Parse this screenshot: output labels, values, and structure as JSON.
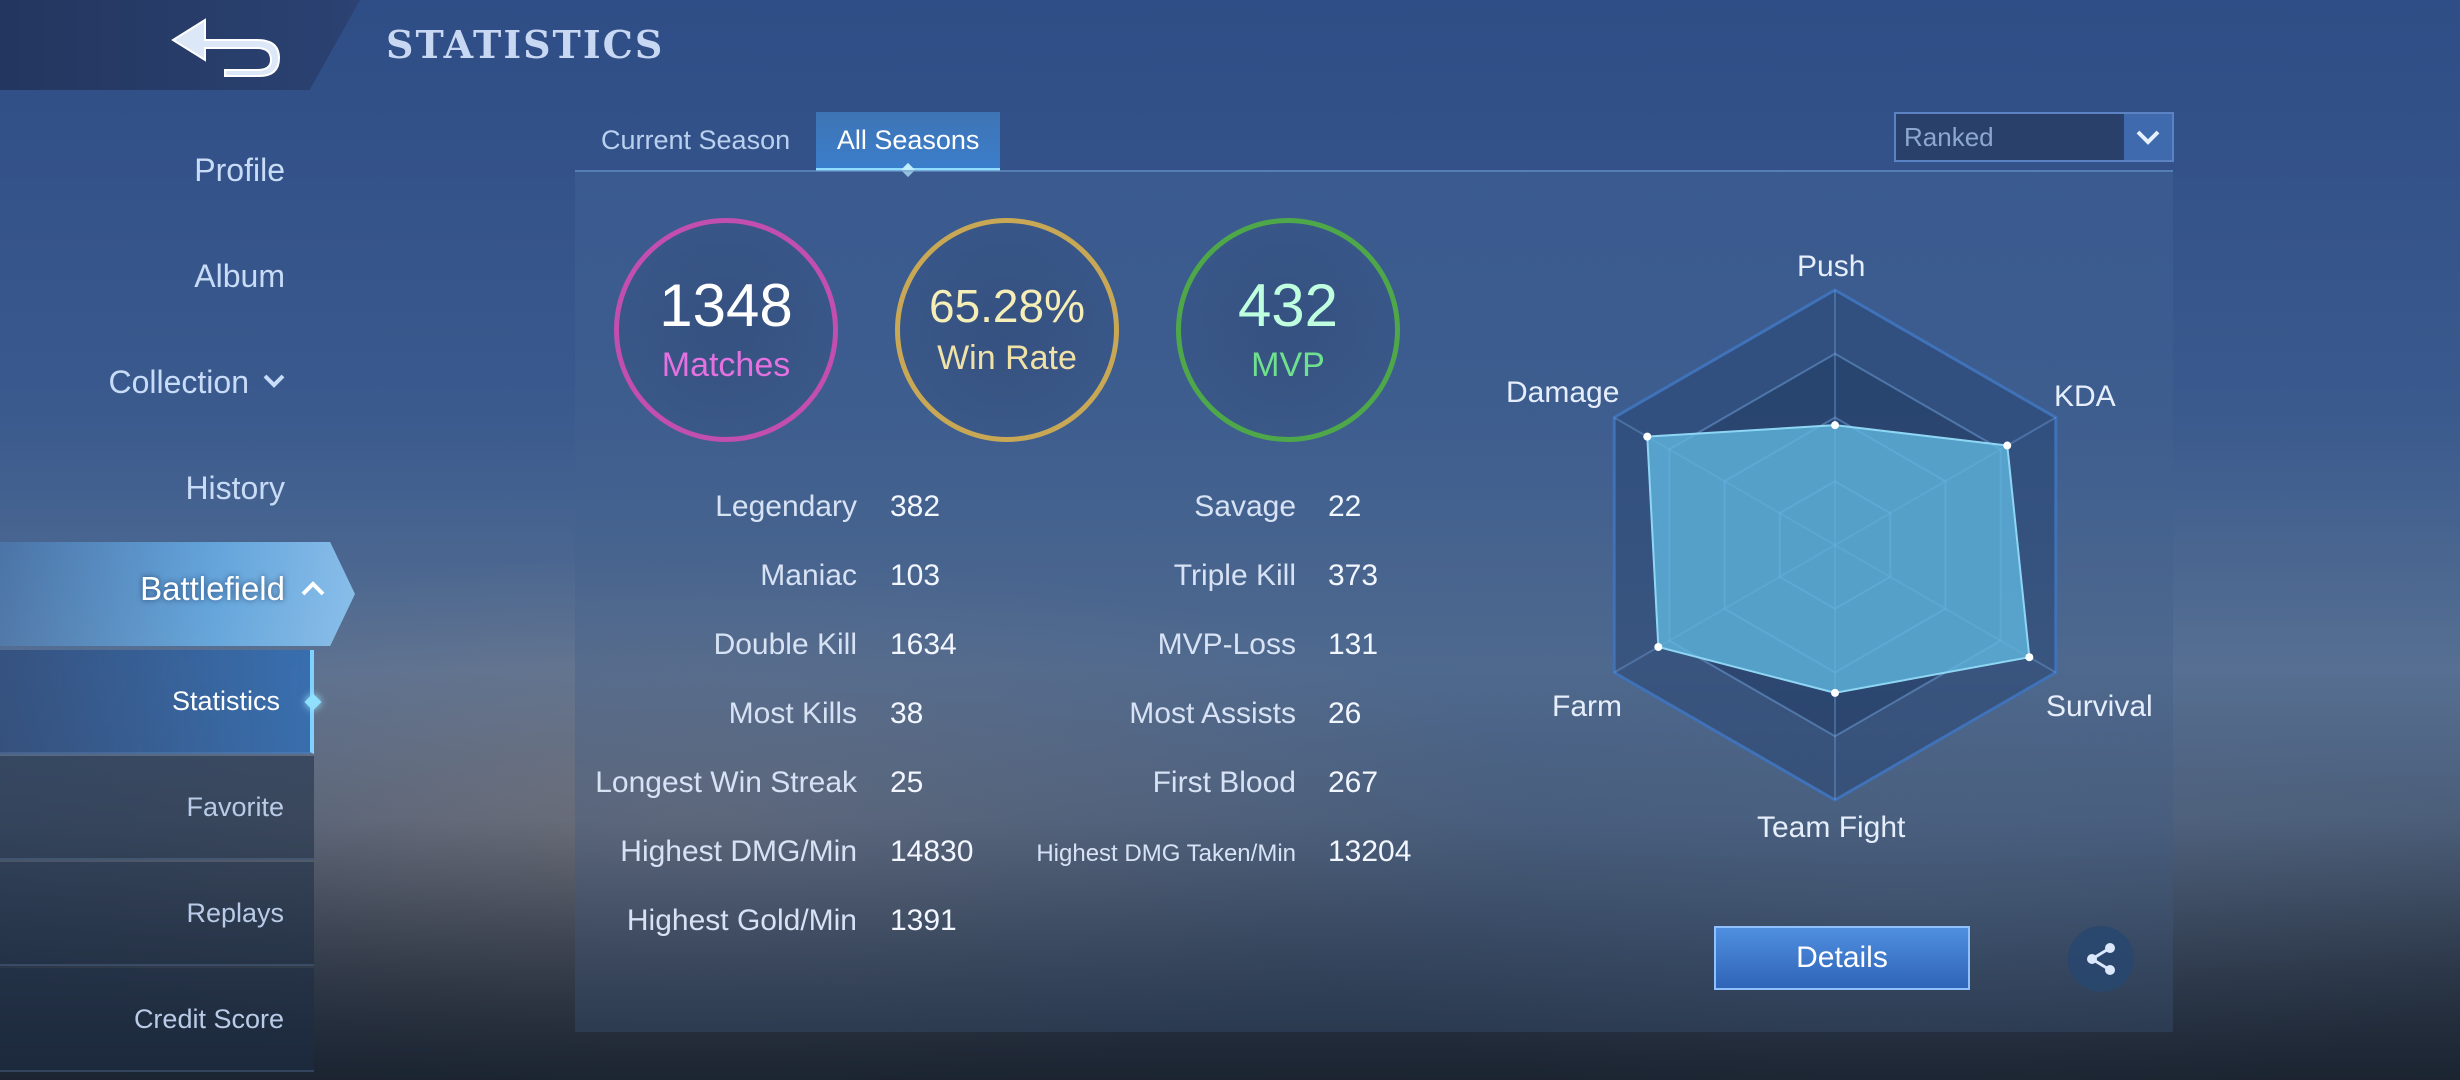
{
  "header": {
    "title": "STATISTICS",
    "back_icon": "back-arrow-icon"
  },
  "sidebar": {
    "items": [
      {
        "label": "Profile"
      },
      {
        "label": "Album"
      },
      {
        "label": "Collection",
        "icon": "chevron-down-icon"
      },
      {
        "label": "History"
      },
      {
        "label": "Battlefield",
        "icon": "chevron-up-icon",
        "active": true
      }
    ],
    "subitems": [
      {
        "label": "Statistics",
        "active": true
      },
      {
        "label": "Favorite"
      },
      {
        "label": "Replays"
      },
      {
        "label": "Credit Score"
      }
    ]
  },
  "tabs": [
    {
      "label": "Current Season"
    },
    {
      "label": "All Seasons",
      "active": true
    }
  ],
  "mode_select": {
    "value": "Ranked",
    "icon": "chevron-down-icon"
  },
  "summary": {
    "matches": {
      "value": "1348",
      "label": "Matches"
    },
    "win_rate": {
      "value": "65.28%",
      "label": "Win Rate"
    },
    "mvp": {
      "value": "432",
      "label": "MVP"
    }
  },
  "stats_left": [
    {
      "label": "Legendary",
      "value": "382"
    },
    {
      "label": "Maniac",
      "value": "103"
    },
    {
      "label": "Double Kill",
      "value": "1634"
    },
    {
      "label": "Most Kills",
      "value": "38"
    },
    {
      "label": "Longest Win Streak",
      "value": "25"
    },
    {
      "label": "Highest DMG/Min",
      "value": "14830"
    },
    {
      "label": "Highest Gold/Min",
      "value": "1391"
    }
  ],
  "stats_right": [
    {
      "label": "Savage",
      "value": "22"
    },
    {
      "label": "Triple Kill",
      "value": "373"
    },
    {
      "label": "MVP-Loss",
      "value": "131"
    },
    {
      "label": "Most Assists",
      "value": "26"
    },
    {
      "label": "First Blood",
      "value": "267"
    },
    {
      "label": "Highest DMG Taken/Min",
      "value": "13204"
    }
  ],
  "radar": {
    "axes": [
      "Push",
      "KDA",
      "Survival",
      "Team Fight",
      "Farm",
      "Damage"
    ],
    "values": [
      0.47,
      0.78,
      0.88,
      0.58,
      0.8,
      0.85
    ],
    "fill_color": "#5fb6e0"
  },
  "actions": {
    "details_label": "Details",
    "share_icon": "share-icon"
  }
}
